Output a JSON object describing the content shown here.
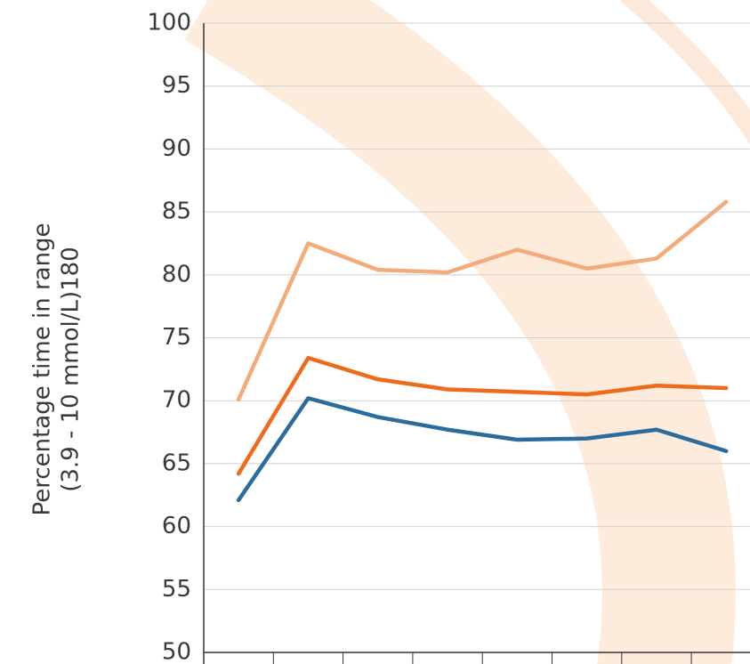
{
  "chart_data": {
    "type": "line",
    "y_label": [
      "Percentage time in range",
      "(3.9 - 10 mmol/L)180"
    ],
    "categories": [
      null,
      null,
      null,
      null,
      null,
      null,
      null,
      null
    ],
    "series": [
      {
        "color": "#f4ab7c",
        "values": [
          70.1,
          82.5,
          80.4,
          80.2,
          82.0,
          80.5,
          81.3,
          85.8
        ]
      },
      {
        "color": "#ee6b1e",
        "values": [
          64.2,
          73.4,
          71.7,
          70.9,
          70.7,
          70.5,
          71.2,
          71.0
        ]
      },
      {
        "color": "#2a6c9e",
        "values": [
          62.1,
          70.2,
          68.7,
          67.7,
          66.9,
          67.0,
          67.7,
          66.0
        ]
      }
    ],
    "ylim": [
      50,
      100
    ],
    "yticks": [
      50,
      55,
      60,
      65,
      70,
      75,
      80,
      85,
      90,
      95,
      100
    ],
    "grid": true
  }
}
